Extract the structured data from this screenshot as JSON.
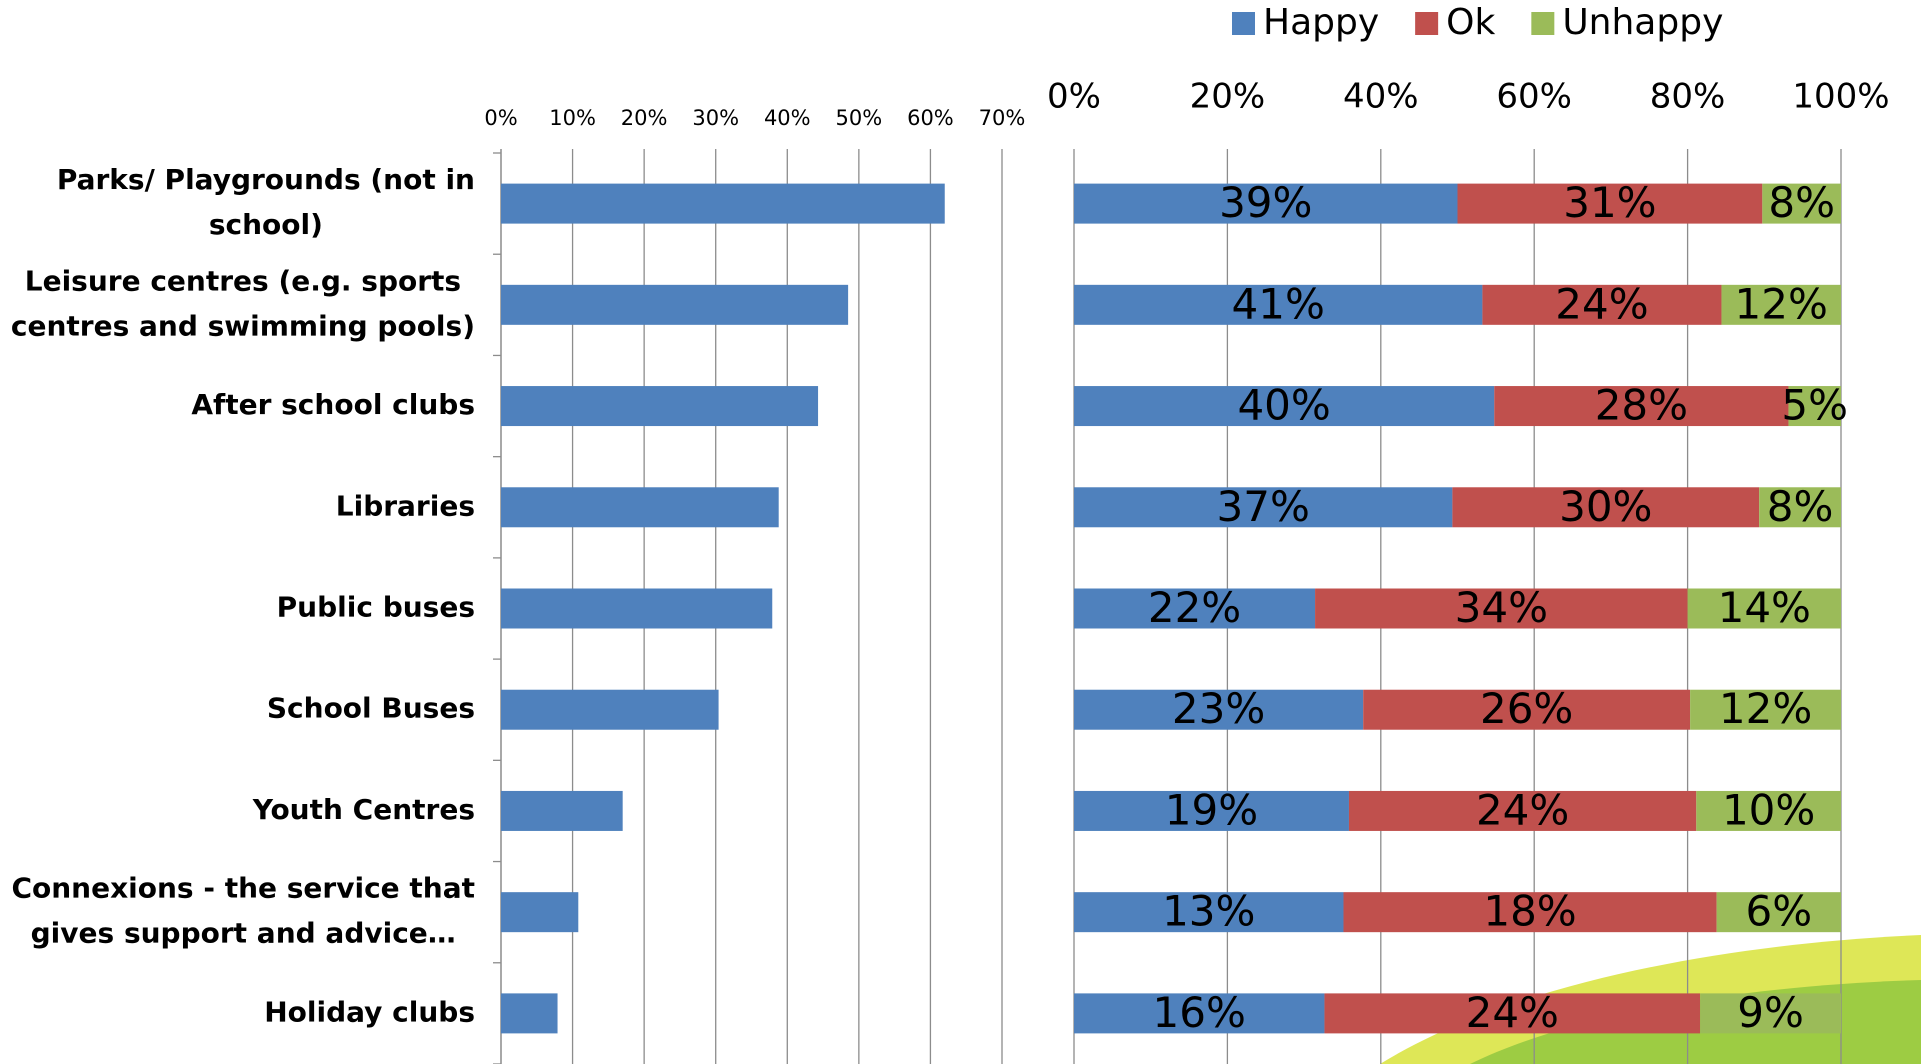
{
  "chart_data": [
    {
      "type": "bar",
      "orientation": "horizontal",
      "categories": [
        "Parks/ Playgrounds (not in school)",
        "Leisure centres (e.g. sports centres and swimming pools)",
        "After school clubs",
        "Libraries",
        "Public buses",
        "School Buses",
        "Youth Centres",
        "Connexions - the service that gives support and advice…",
        "Holiday clubs"
      ],
      "values": [
        62,
        48.5,
        44.3,
        38.8,
        37.9,
        30.4,
        17,
        10.8,
        7.9
      ],
      "color": "#4f81bd",
      "xlim": [
        0,
        70
      ],
      "xticks": [
        {
          "value": 0,
          "label": "0%"
        },
        {
          "value": 10,
          "label": "10%"
        },
        {
          "value": 20,
          "label": "20%"
        },
        {
          "value": 30,
          "label": "30%"
        },
        {
          "value": 40,
          "label": "40%"
        },
        {
          "value": 50,
          "label": "50%"
        },
        {
          "value": 60,
          "label": "60%"
        },
        {
          "value": 70,
          "label": "70%"
        }
      ],
      "grid": true
    },
    {
      "type": "bar",
      "orientation": "horizontal",
      "stacking": "percent",
      "series": [
        {
          "name": "Happy",
          "color": "#4f81bd",
          "values": [
            39,
            41,
            40,
            37,
            22,
            23,
            19,
            13,
            16
          ],
          "value_labels": [
            "39%",
            "41%",
            "40%",
            "37%",
            "22%",
            "23%",
            "19%",
            "13%",
            "16%"
          ]
        },
        {
          "name": "Ok",
          "color": "#c0504d",
          "values": [
            31,
            24,
            28,
            30,
            34,
            26,
            24,
            18,
            24
          ],
          "value_labels": [
            "31%",
            "24%",
            "28%",
            "30%",
            "34%",
            "26%",
            "24%",
            "18%",
            "24%"
          ]
        },
        {
          "name": "Unhappy",
          "color": "#9bbb59",
          "values": [
            8,
            12,
            5,
            8,
            14,
            12,
            10,
            6,
            9
          ],
          "value_labels": [
            "8%",
            "12%",
            "5%",
            "8%",
            "14%",
            "12%",
            "10%",
            "6%",
            "9%"
          ]
        }
      ],
      "xlim": [
        0,
        100
      ],
      "xticks": [
        {
          "value": 0,
          "label": "0%"
        },
        {
          "value": 20,
          "label": "20%"
        },
        {
          "value": 40,
          "label": "40%"
        },
        {
          "value": 60,
          "label": "60%"
        },
        {
          "value": 80,
          "label": "80%"
        },
        {
          "value": 100,
          "label": "100%"
        }
      ],
      "grid": true,
      "legend": "top"
    }
  ]
}
